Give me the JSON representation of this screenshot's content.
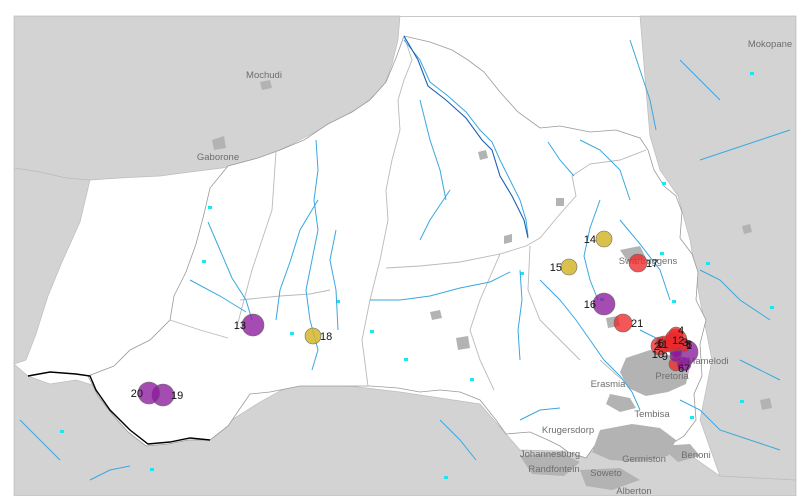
{
  "map": {
    "colors": {
      "land": "#d3d3d3",
      "basin": "#ffffff",
      "river": "#39a8e0",
      "main_river": "#1d5fb5",
      "urban": "#b3b3b3",
      "wetland": "#19e7f0",
      "site_purple": "#8b1a9c",
      "site_red": "#f02828",
      "site_yellow": "#d4b62c"
    },
    "places": [
      {
        "name": "Mochudi"
      },
      {
        "name": "Gaborone"
      },
      {
        "name": "Mokopane"
      },
      {
        "name": "Swartruggens"
      },
      {
        "name": "Mamelodi"
      },
      {
        "name": "Pretoria"
      },
      {
        "name": "Erasmia"
      },
      {
        "name": "Tembisa"
      },
      {
        "name": "Krugersdorp"
      },
      {
        "name": "Johannesburg"
      },
      {
        "name": "Randfontein"
      },
      {
        "name": "Soweto"
      },
      {
        "name": "Germiston"
      },
      {
        "name": "Benoni"
      },
      {
        "name": "Alberton"
      }
    ],
    "sites": [
      {
        "id": "1",
        "color": "purple"
      },
      {
        "id": "2",
        "color": "red"
      },
      {
        "id": "3",
        "color": "purple"
      },
      {
        "id": "4",
        "color": "red"
      },
      {
        "id": "5",
        "color": "red"
      },
      {
        "id": "6",
        "color": "red"
      },
      {
        "id": "7",
        "color": "purple"
      },
      {
        "id": "8",
        "color": "red"
      },
      {
        "id": "9",
        "color": "purple"
      },
      {
        "id": "10",
        "color": "purple"
      },
      {
        "id": "11",
        "color": "red"
      },
      {
        "id": "12",
        "color": "red"
      },
      {
        "id": "13",
        "color": "purple"
      },
      {
        "id": "14",
        "color": "yellow"
      },
      {
        "id": "15",
        "color": "yellow"
      },
      {
        "id": "16",
        "color": "purple"
      },
      {
        "id": "17",
        "color": "red"
      },
      {
        "id": "18",
        "color": "yellow"
      },
      {
        "id": "19",
        "color": "purple"
      },
      {
        "id": "20",
        "color": "purple"
      },
      {
        "id": "21",
        "color": "red"
      }
    ]
  }
}
